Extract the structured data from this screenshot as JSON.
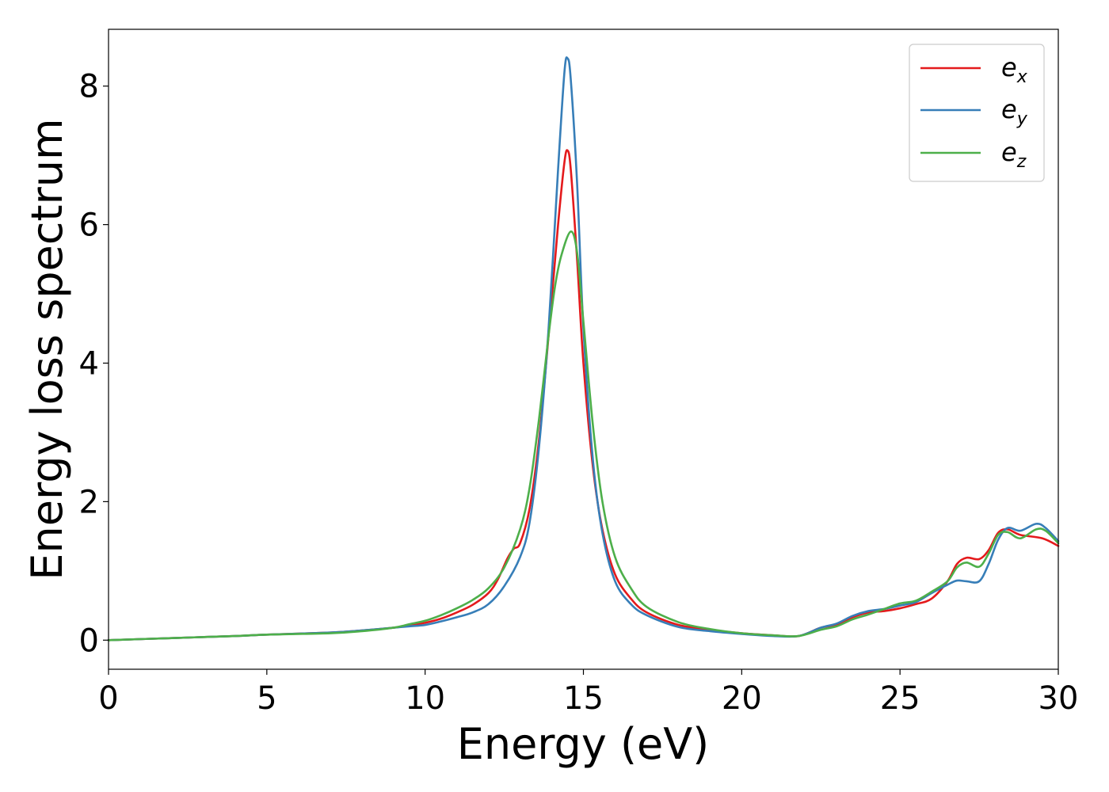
{
  "chart_data": {
    "type": "line",
    "xlabel": "Energy (eV)",
    "ylabel": "Energy loss spectrum",
    "xlim": [
      0,
      30
    ],
    "ylim": [
      -0.42,
      8.82
    ],
    "xticks": [
      "0",
      "5",
      "10",
      "15",
      "20",
      "25",
      "30"
    ],
    "yticks": [
      "0",
      "2",
      "4",
      "6",
      "8"
    ],
    "grid": false,
    "legend_position": "top-right",
    "series": [
      {
        "name": "e_x",
        "label_base": "e",
        "label_sub": "x",
        "color": "#e41a1c",
        "points": [
          [
            0,
            0
          ],
          [
            2,
            0.03
          ],
          [
            4,
            0.06
          ],
          [
            5,
            0.08
          ],
          [
            7,
            0.11
          ],
          [
            8,
            0.14
          ],
          [
            9,
            0.18
          ],
          [
            9.5,
            0.21
          ],
          [
            10,
            0.25
          ],
          [
            10.5,
            0.31
          ],
          [
            11,
            0.4
          ],
          [
            11.5,
            0.51
          ],
          [
            12,
            0.68
          ],
          [
            12.3,
            0.88
          ],
          [
            12.6,
            1.18
          ],
          [
            12.8,
            1.32
          ],
          [
            13.0,
            1.4
          ],
          [
            13.3,
            1.9
          ],
          [
            13.6,
            2.9
          ],
          [
            13.9,
            4.4
          ],
          [
            14.2,
            6.0
          ],
          [
            14.4,
            6.9
          ],
          [
            14.5,
            7.07
          ],
          [
            14.6,
            6.8
          ],
          [
            14.8,
            5.5
          ],
          [
            15.0,
            4.0
          ],
          [
            15.3,
            2.5
          ],
          [
            15.6,
            1.6
          ],
          [
            16.0,
            0.95
          ],
          [
            16.5,
            0.6
          ],
          [
            17,
            0.4
          ],
          [
            18,
            0.22
          ],
          [
            19,
            0.15
          ],
          [
            20,
            0.1
          ],
          [
            21,
            0.07
          ],
          [
            21.8,
            0.06
          ],
          [
            22.5,
            0.18
          ],
          [
            23,
            0.22
          ],
          [
            23.5,
            0.33
          ],
          [
            24,
            0.4
          ],
          [
            24.5,
            0.42
          ],
          [
            25,
            0.46
          ],
          [
            25.5,
            0.52
          ],
          [
            26,
            0.6
          ],
          [
            26.5,
            0.85
          ],
          [
            26.8,
            1.1
          ],
          [
            27.1,
            1.19
          ],
          [
            27.5,
            1.17
          ],
          [
            27.8,
            1.3
          ],
          [
            28.1,
            1.55
          ],
          [
            28.4,
            1.6
          ],
          [
            28.8,
            1.52
          ],
          [
            29.5,
            1.47
          ],
          [
            30,
            1.36
          ]
        ]
      },
      {
        "name": "e_y",
        "label_base": "e",
        "label_sub": "y",
        "color": "#377eb8",
        "points": [
          [
            0,
            0
          ],
          [
            2,
            0.03
          ],
          [
            4,
            0.06
          ],
          [
            5,
            0.08
          ],
          [
            7,
            0.11
          ],
          [
            8,
            0.14
          ],
          [
            9,
            0.18
          ],
          [
            9.5,
            0.2
          ],
          [
            10,
            0.22
          ],
          [
            10.5,
            0.27
          ],
          [
            11,
            0.33
          ],
          [
            11.5,
            0.4
          ],
          [
            12,
            0.52
          ],
          [
            12.5,
            0.78
          ],
          [
            13.0,
            1.2
          ],
          [
            13.3,
            1.7
          ],
          [
            13.6,
            2.8
          ],
          [
            13.9,
            4.5
          ],
          [
            14.2,
            6.8
          ],
          [
            14.4,
            8.2
          ],
          [
            14.5,
            8.4
          ],
          [
            14.6,
            8.1
          ],
          [
            14.8,
            6.6
          ],
          [
            15.0,
            4.5
          ],
          [
            15.3,
            2.6
          ],
          [
            15.6,
            1.55
          ],
          [
            16.0,
            0.85
          ],
          [
            16.5,
            0.52
          ],
          [
            17,
            0.36
          ],
          [
            18,
            0.19
          ],
          [
            19,
            0.13
          ],
          [
            20,
            0.09
          ],
          [
            21,
            0.06
          ],
          [
            21.8,
            0.06
          ],
          [
            22.5,
            0.18
          ],
          [
            23,
            0.24
          ],
          [
            23.5,
            0.35
          ],
          [
            24,
            0.42
          ],
          [
            24.5,
            0.45
          ],
          [
            25,
            0.5
          ],
          [
            25.5,
            0.55
          ],
          [
            26,
            0.68
          ],
          [
            26.5,
            0.8
          ],
          [
            26.8,
            0.86
          ],
          [
            27.1,
            0.85
          ],
          [
            27.5,
            0.85
          ],
          [
            27.8,
            1.1
          ],
          [
            28.1,
            1.45
          ],
          [
            28.4,
            1.62
          ],
          [
            28.8,
            1.58
          ],
          [
            29.3,
            1.68
          ],
          [
            29.6,
            1.62
          ],
          [
            30,
            1.43
          ]
        ]
      },
      {
        "name": "e_z",
        "label_base": "e",
        "label_sub": "z",
        "color": "#4daf4a",
        "points": [
          [
            0,
            0
          ],
          [
            2,
            0.03
          ],
          [
            4,
            0.06
          ],
          [
            5,
            0.08
          ],
          [
            7,
            0.1
          ],
          [
            8,
            0.13
          ],
          [
            9,
            0.18
          ],
          [
            9.5,
            0.23
          ],
          [
            10,
            0.28
          ],
          [
            10.5,
            0.36
          ],
          [
            11,
            0.46
          ],
          [
            11.5,
            0.58
          ],
          [
            12,
            0.75
          ],
          [
            12.5,
            1.05
          ],
          [
            13.0,
            1.6
          ],
          [
            13.3,
            2.2
          ],
          [
            13.6,
            3.2
          ],
          [
            13.9,
            4.4
          ],
          [
            14.1,
            5.1
          ],
          [
            14.3,
            5.55
          ],
          [
            14.6,
            5.9
          ],
          [
            14.8,
            5.6
          ],
          [
            15.0,
            4.6
          ],
          [
            15.3,
            3.1
          ],
          [
            15.6,
            2.0
          ],
          [
            16.0,
            1.2
          ],
          [
            16.5,
            0.75
          ],
          [
            17,
            0.48
          ],
          [
            18,
            0.26
          ],
          [
            19,
            0.16
          ],
          [
            20,
            0.1
          ],
          [
            21,
            0.07
          ],
          [
            21.8,
            0.06
          ],
          [
            22.5,
            0.15
          ],
          [
            23,
            0.2
          ],
          [
            23.5,
            0.3
          ],
          [
            24,
            0.37
          ],
          [
            24.5,
            0.45
          ],
          [
            25,
            0.53
          ],
          [
            25.5,
            0.57
          ],
          [
            26,
            0.7
          ],
          [
            26.5,
            0.85
          ],
          [
            26.8,
            1.05
          ],
          [
            27.1,
            1.12
          ],
          [
            27.5,
            1.06
          ],
          [
            27.8,
            1.25
          ],
          [
            28.1,
            1.52
          ],
          [
            28.4,
            1.56
          ],
          [
            28.8,
            1.47
          ],
          [
            29.3,
            1.6
          ],
          [
            29.6,
            1.58
          ],
          [
            30,
            1.4
          ]
        ]
      }
    ]
  }
}
